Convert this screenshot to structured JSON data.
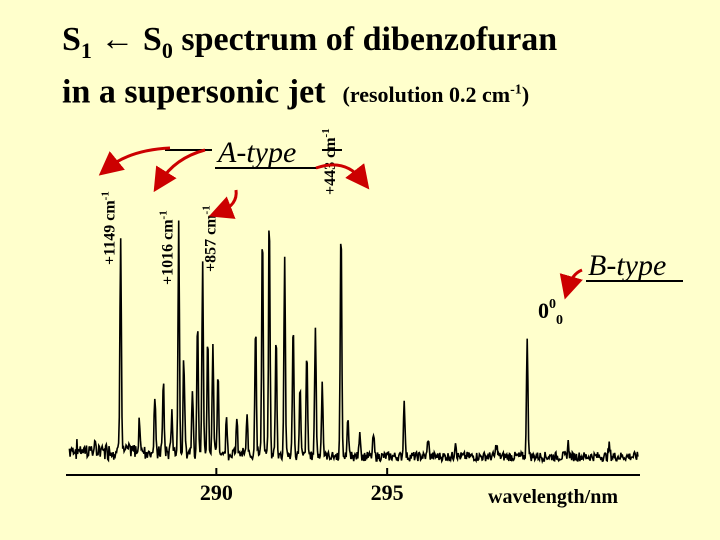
{
  "title": {
    "line1_prefix": "S",
    "line1_sub1": "1",
    "line1_arrow": " ← S",
    "line1_sub2": "0",
    "line1_rest": " spectrum of dibenzofuran",
    "line2_main": "in a supersonic jet",
    "line2_res": "(resolution 0.2 cm",
    "line2_res_sup": "-1",
    "line2_res_close": ")"
  },
  "chart_data": {
    "type": "line",
    "xlabel": "wavelength/nm",
    "ylabel": "",
    "xlim": [
      285.6,
      302.4
    ],
    "ylim": [
      0,
      1
    ],
    "xticks": [
      290,
      295
    ],
    "xtick_labels": [
      "290",
      "295"
    ],
    "grid": false,
    "baseline": 0.05,
    "peaks": [
      {
        "x": 287.2,
        "h": 0.82
      },
      {
        "x": 287.75,
        "h": 0.12
      },
      {
        "x": 288.2,
        "h": 0.2
      },
      {
        "x": 288.45,
        "h": 0.26
      },
      {
        "x": 288.7,
        "h": 0.15
      },
      {
        "x": 288.9,
        "h": 0.85
      },
      {
        "x": 289.05,
        "h": 0.35
      },
      {
        "x": 289.3,
        "h": 0.25
      },
      {
        "x": 289.45,
        "h": 0.5
      },
      {
        "x": 289.6,
        "h": 0.7
      },
      {
        "x": 289.75,
        "h": 0.45
      },
      {
        "x": 289.9,
        "h": 0.38
      },
      {
        "x": 290.05,
        "h": 0.3
      },
      {
        "x": 290.3,
        "h": 0.14
      },
      {
        "x": 290.6,
        "h": 0.12
      },
      {
        "x": 290.9,
        "h": 0.13
      },
      {
        "x": 291.15,
        "h": 0.5
      },
      {
        "x": 291.35,
        "h": 0.84
      },
      {
        "x": 291.55,
        "h": 0.9
      },
      {
        "x": 291.75,
        "h": 0.45
      },
      {
        "x": 292.0,
        "h": 0.74
      },
      {
        "x": 292.25,
        "h": 0.5
      },
      {
        "x": 292.45,
        "h": 0.25
      },
      {
        "x": 292.65,
        "h": 0.38
      },
      {
        "x": 292.9,
        "h": 0.48
      },
      {
        "x": 293.1,
        "h": 0.28
      },
      {
        "x": 293.65,
        "h": 0.86
      },
      {
        "x": 293.85,
        "h": 0.15
      },
      {
        "x": 294.2,
        "h": 0.1
      },
      {
        "x": 294.6,
        "h": 0.08
      },
      {
        "x": 295.5,
        "h": 0.22
      },
      {
        "x": 296.2,
        "h": 0.07
      },
      {
        "x": 297.0,
        "h": 0.06
      },
      {
        "x": 298.2,
        "h": 0.05
      },
      {
        "x": 299.1,
        "h": 0.45
      },
      {
        "x": 300.3,
        "h": 0.05
      },
      {
        "x": 301.5,
        "h": 0.04
      }
    ],
    "annotations": [
      {
        "text": "+1149 cm",
        "sup": "-1",
        "x": 287.2
      },
      {
        "text": "+1016 cm",
        "sup": "-1",
        "x": 288.9
      },
      {
        "text": "+857 cm",
        "sup": "-1",
        "x": 290.15
      },
      {
        "text": "+443 cm",
        "sup": "-1",
        "x": 293.65
      }
    ],
    "a_type_label": "A-type",
    "b_type_label": "B-type",
    "origin_label": {
      "main": "0",
      "sup": "0",
      "sub": "0"
    }
  },
  "colors": {
    "background": "#ffffcc",
    "trace": "#000000",
    "arrow": "#cc0000"
  }
}
